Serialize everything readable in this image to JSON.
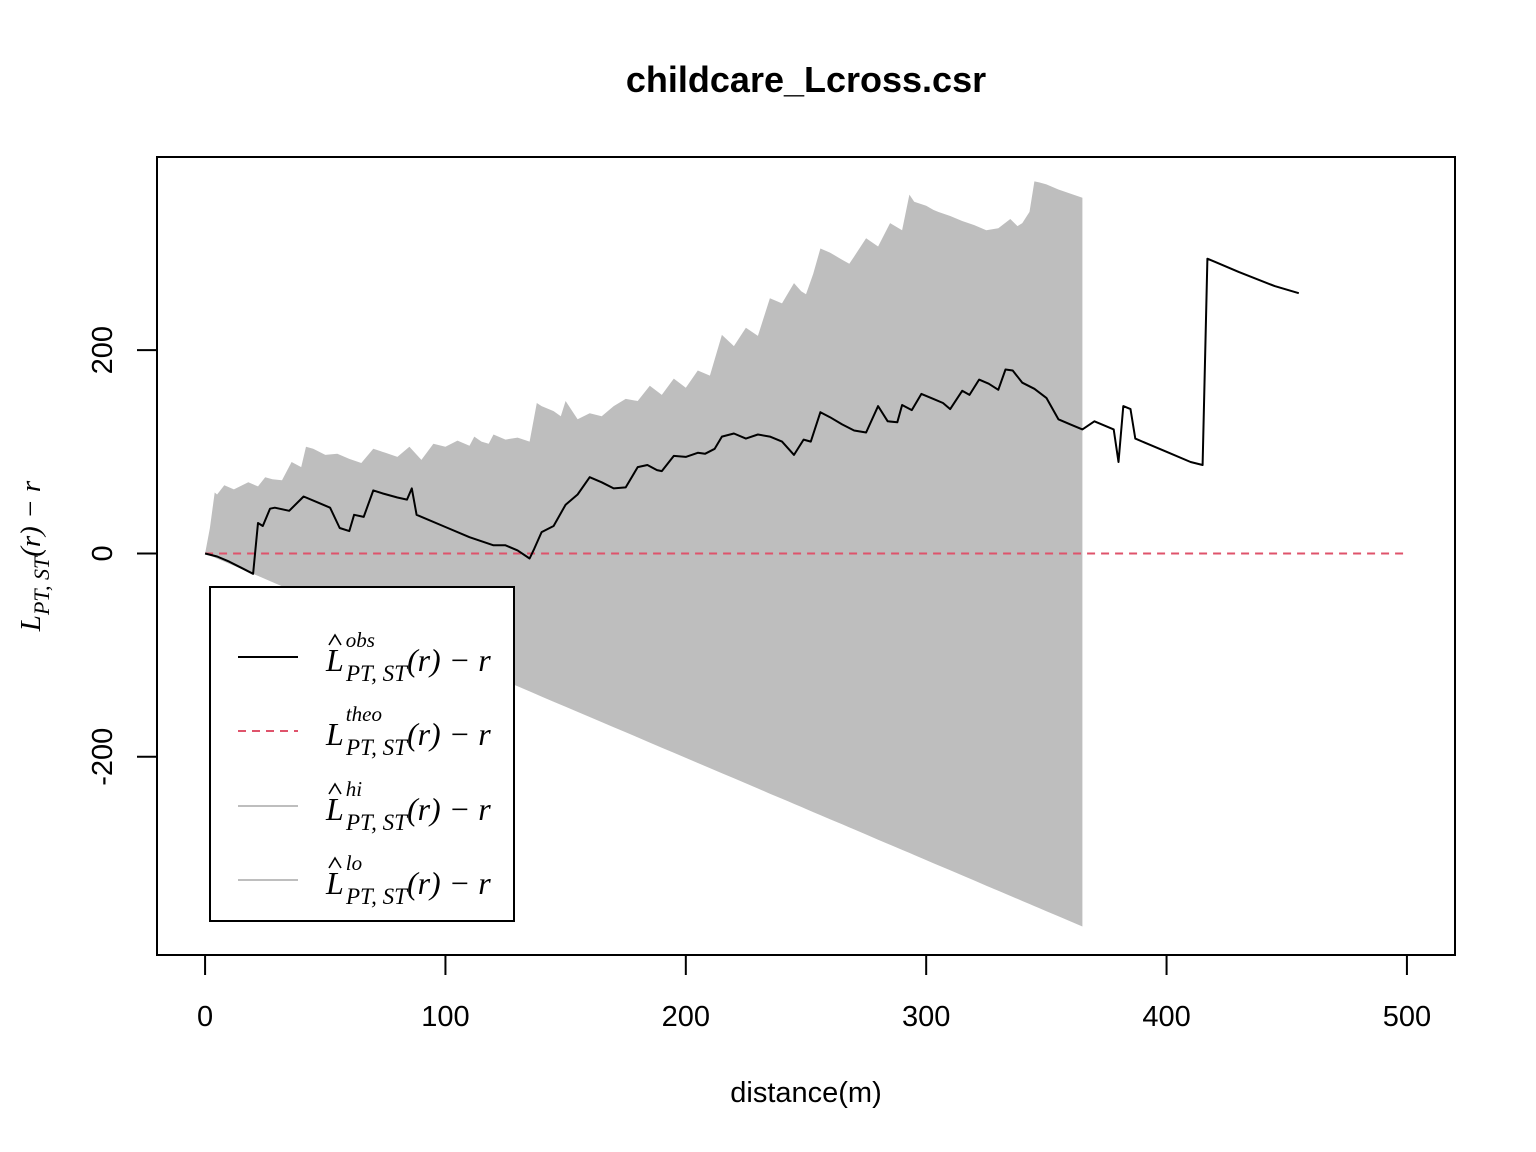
{
  "chart_data": {
    "type": "line",
    "title": "childcare_Lcross.csr",
    "xlabel": "distance(m)",
    "ylabel": {
      "main": "L",
      "sub": "PT, ST",
      "tail": "(r) − r"
    },
    "xlim": [
      -20,
      520
    ],
    "ylim": [
      -395,
      390
    ],
    "x_ticks": [
      0,
      100,
      200,
      300,
      400,
      500
    ],
    "y_ticks": [
      -200,
      0,
      200
    ],
    "grid": false,
    "legend_position": "bottom-left",
    "colors": {
      "obs": "#000000",
      "theo": "#DF536B",
      "envelope": "#BEBEBE"
    },
    "series": [
      {
        "key": "obs",
        "label": {
          "hat": true,
          "main": "L",
          "sup": "obs",
          "sub": "PT, ST",
          "tail": "(r) − r"
        },
        "x": [
          0,
          5,
          10,
          15,
          20,
          22,
          24,
          27,
          29,
          35,
          41,
          47,
          52,
          56,
          60,
          62,
          66,
          70,
          74,
          80,
          84,
          86,
          88,
          100,
          110,
          120,
          125,
          130,
          135,
          137,
          140,
          145,
          150,
          155,
          160,
          165,
          170,
          175,
          180,
          184,
          188,
          190,
          195,
          200,
          205,
          208,
          212,
          215,
          220,
          225,
          230,
          235,
          240,
          245,
          249,
          252,
          256,
          260,
          265,
          270,
          275,
          280,
          284,
          288,
          290,
          294,
          298,
          303,
          307,
          310,
          315,
          318,
          322,
          326,
          330,
          333,
          336,
          340,
          345,
          350,
          355,
          360,
          365,
          370,
          378,
          380,
          382,
          385,
          387,
          392,
          400,
          410,
          415,
          417,
          420,
          430,
          445,
          455
        ],
        "y": [
          0,
          -3,
          -8,
          -14,
          -20,
          30,
          27,
          44,
          45,
          42,
          56,
          50,
          45,
          25,
          22,
          38,
          36,
          62,
          59,
          55,
          53,
          64,
          38,
          26,
          16,
          8,
          8,
          3,
          -5,
          5,
          21,
          27,
          48,
          58,
          75,
          70,
          64,
          65,
          85,
          87,
          82,
          81,
          96,
          95,
          99,
          98,
          103,
          115,
          118,
          113,
          117,
          115,
          110,
          97,
          112,
          110,
          139,
          134,
          127,
          121,
          119,
          145,
          130,
          129,
          146,
          141,
          157,
          152,
          148,
          142,
          160,
          156,
          171,
          167,
          161,
          181,
          180,
          168,
          162,
          153,
          132,
          127,
          122,
          130,
          122,
          90,
          145,
          142,
          113,
          108,
          100,
          90,
          87,
          290,
          287,
          277,
          263,
          256
        ]
      },
      {
        "key": "theo",
        "label": {
          "hat": false,
          "main": "L",
          "sup": "theo",
          "sub": "PT, ST",
          "tail": "(r) − r"
        },
        "x": [
          0,
          500
        ],
        "y": [
          0,
          0
        ]
      },
      {
        "key": "hi",
        "label": {
          "hat": true,
          "main": "L",
          "sup": "hi",
          "sub": "PT, ST",
          "tail": "(r) − r"
        },
        "x": [
          0,
          2,
          4,
          5,
          8,
          12,
          18,
          22,
          25,
          28,
          32,
          36,
          40,
          42,
          45,
          50,
          55,
          60,
          65,
          70,
          75,
          80,
          85,
          90,
          95,
          100,
          105,
          110,
          112,
          115,
          118,
          120,
          125,
          130,
          135,
          138,
          140,
          145,
          148,
          150,
          155,
          160,
          165,
          170,
          175,
          180,
          185,
          190,
          195,
          200,
          205,
          210,
          215,
          220,
          225,
          230,
          235,
          240,
          242,
          245,
          248,
          250,
          253,
          256,
          260,
          265,
          268,
          270,
          275,
          280,
          285,
          290,
          293,
          295,
          300,
          303,
          305,
          310,
          315,
          320,
          325,
          330,
          335,
          338,
          340,
          343,
          345,
          347,
          350,
          355,
          360,
          365
        ],
        "y": [
          0,
          25,
          60,
          58,
          67,
          63,
          70,
          66,
          75,
          73,
          72,
          90,
          85,
          105,
          103,
          97,
          98,
          93,
          89,
          103,
          99,
          95,
          105,
          92,
          108,
          105,
          111,
          106,
          115,
          110,
          108,
          117,
          112,
          114,
          110,
          148,
          145,
          140,
          135,
          150,
          132,
          138,
          135,
          145,
          152,
          150,
          165,
          156,
          172,
          163,
          180,
          175,
          215,
          204,
          222,
          214,
          251,
          246,
          254,
          266,
          258,
          255,
          275,
          300,
          296,
          289,
          285,
          292,
          310,
          302,
          325,
          318,
          353,
          346,
          342,
          338,
          336,
          332,
          327,
          323,
          318,
          320,
          329,
          322,
          325,
          336,
          366,
          365,
          363,
          358,
          354,
          350
        ]
      },
      {
        "key": "lo",
        "label": {
          "hat": true,
          "main": "L",
          "sup": "lo",
          "sub": "PT, ST",
          "tail": "(r) − r"
        },
        "x": [
          0,
          365
        ],
        "y": [
          0,
          -367
        ]
      }
    ]
  }
}
